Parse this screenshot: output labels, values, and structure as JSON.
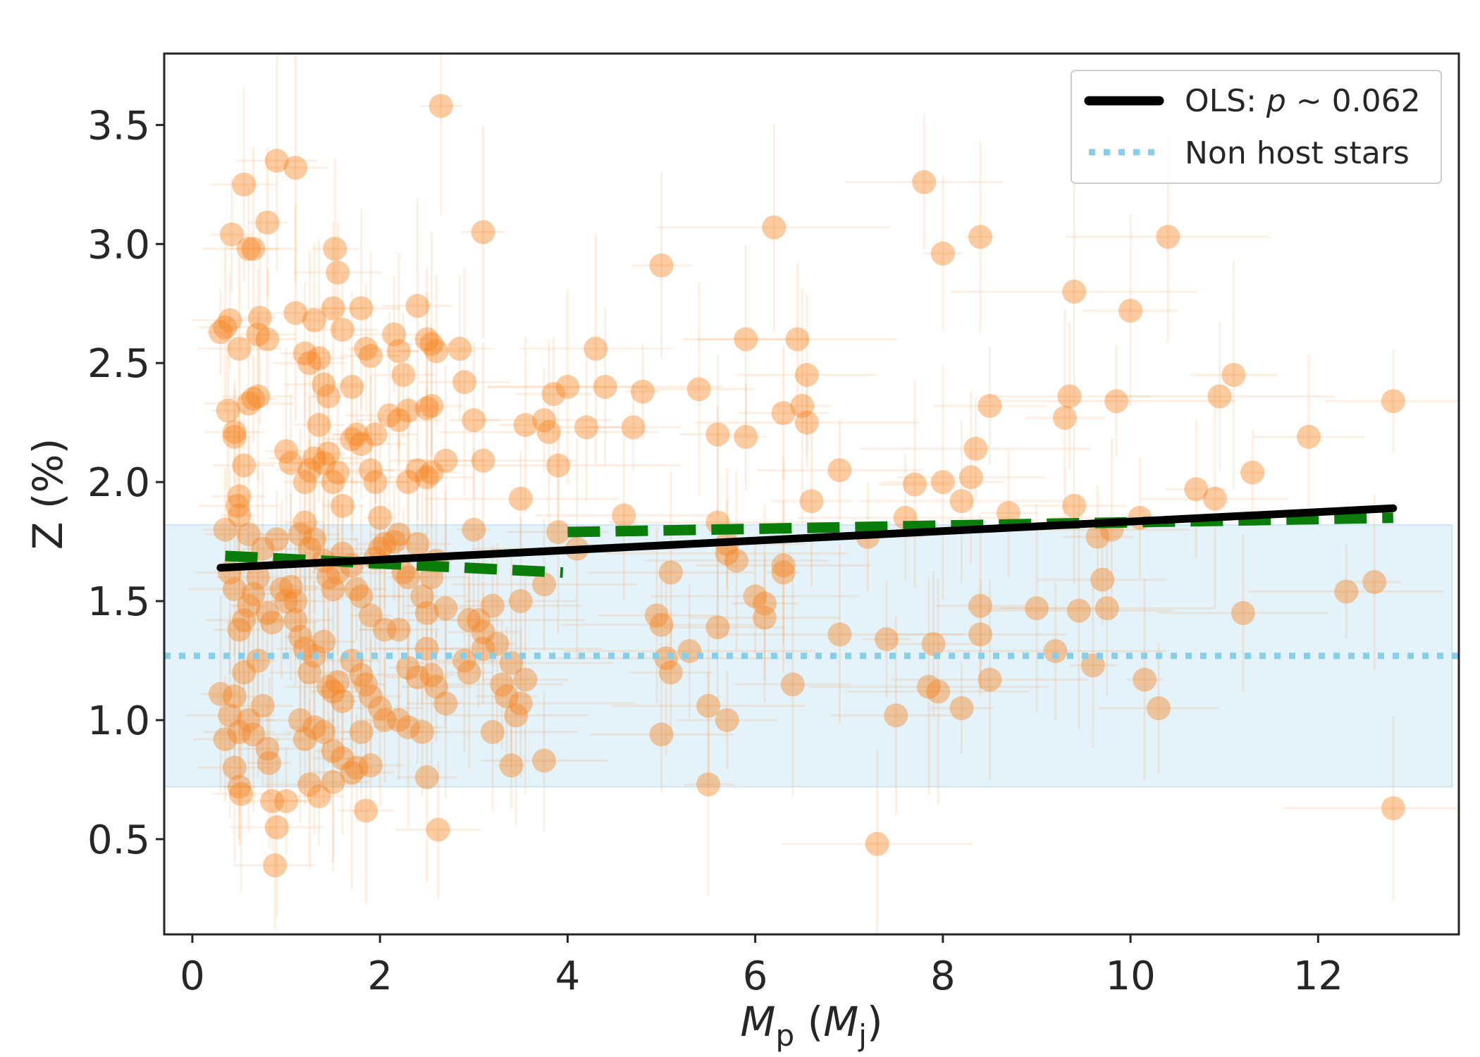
{
  "chart_data": {
    "type": "scatter",
    "xlabel_main": "M",
    "xlabel_sub": "p",
    "xlabel_open": " (",
    "xlabel_unit_main": "M",
    "xlabel_unit_sub": "j",
    "xlabel_close": ")",
    "ylabel": "Z (%)",
    "xlim": [
      -0.3,
      13.5
    ],
    "ylim": [
      0.1,
      3.8
    ],
    "x_ticks": [
      0,
      2,
      4,
      6,
      8,
      10,
      12
    ],
    "y_ticks": [
      0.5,
      1.0,
      1.5,
      2.0,
      2.5,
      3.0,
      3.5
    ],
    "x_tick_labels": [
      "0",
      "2",
      "4",
      "6",
      "8",
      "10",
      "12"
    ],
    "y_tick_labels": [
      "0.5",
      "1.0",
      "1.5",
      "2.0",
      "2.5",
      "3.0",
      "3.5"
    ],
    "grid": false,
    "legend_placement": "top-right",
    "legend": {
      "ols_prefix": "OLS: ",
      "ols_p": "p",
      "ols_suffix": " ~ 0.062",
      "non_host": "Non host stars"
    },
    "colors": {
      "points": "#f5821f",
      "ols_line": "#000000",
      "segment_line": "#0a7d0a",
      "non_host_line": "#87ceeb",
      "non_host_band": "#dbeef7"
    },
    "non_host": {
      "mean": 1.27,
      "band": [
        0.72,
        1.82
      ]
    },
    "ols_line": {
      "x": [
        0.3,
        12.8
      ],
      "y": [
        1.64,
        1.89
      ]
    },
    "segment_fits": [
      {
        "x": [
          0.35,
          3.95
        ],
        "y": [
          1.69,
          1.62
        ]
      },
      {
        "x": [
          4.0,
          12.8
        ],
        "y": [
          1.79,
          1.85
        ]
      }
    ],
    "points": [
      [
        0.3,
        2.63
      ],
      [
        0.35,
        2.65
      ],
      [
        0.4,
        2.68
      ],
      [
        0.38,
        2.3
      ],
      [
        0.45,
        2.21
      ],
      [
        0.5,
        2.56
      ],
      [
        0.42,
        3.04
      ],
      [
        0.55,
        3.25
      ],
      [
        0.6,
        2.98
      ],
      [
        0.65,
        2.98
      ],
      [
        0.7,
        2.62
      ],
      [
        0.72,
        2.69
      ],
      [
        0.8,
        2.6
      ],
      [
        0.9,
        3.35
      ],
      [
        0.8,
        3.09
      ],
      [
        1.1,
        3.32
      ],
      [
        0.6,
        2.33
      ],
      [
        0.65,
        2.35
      ],
      [
        0.7,
        2.36
      ],
      [
        0.45,
        2.19
      ],
      [
        0.5,
        1.94
      ],
      [
        0.48,
        1.9
      ],
      [
        0.5,
        1.86
      ],
      [
        0.55,
        2.07
      ],
      [
        0.6,
        1.78
      ],
      [
        0.35,
        1.8
      ],
      [
        0.4,
        1.62
      ],
      [
        0.45,
        1.55
      ],
      [
        0.5,
        1.38
      ],
      [
        0.55,
        1.42
      ],
      [
        0.6,
        1.48
      ],
      [
        0.65,
        1.53
      ],
      [
        0.7,
        1.6
      ],
      [
        0.75,
        1.72
      ],
      [
        0.8,
        1.45
      ],
      [
        0.85,
        1.41
      ],
      [
        0.9,
        1.76
      ],
      [
        0.95,
        1.55
      ],
      [
        1.0,
        1.5
      ],
      [
        1.05,
        1.56
      ],
      [
        1.1,
        1.5
      ],
      [
        0.3,
        1.11
      ],
      [
        0.35,
        0.92
      ],
      [
        0.4,
        1.02
      ],
      [
        0.45,
        1.1
      ],
      [
        0.5,
        0.95
      ],
      [
        0.55,
        1.2
      ],
      [
        0.6,
        1.0
      ],
      [
        0.65,
        0.94
      ],
      [
        0.7,
        1.25
      ],
      [
        0.75,
        1.06
      ],
      [
        0.8,
        0.88
      ],
      [
        0.82,
        0.82
      ],
      [
        0.85,
        0.66
      ],
      [
        0.9,
        0.55
      ],
      [
        1.0,
        0.66
      ],
      [
        0.45,
        0.8
      ],
      [
        0.5,
        0.72
      ],
      [
        0.52,
        0.69
      ],
      [
        0.88,
        0.39
      ],
      [
        1.0,
        2.13
      ],
      [
        1.05,
        2.08
      ],
      [
        1.1,
        2.71
      ],
      [
        1.2,
        2.54
      ],
      [
        1.25,
        2.5
      ],
      [
        1.3,
        2.68
      ],
      [
        1.35,
        2.52
      ],
      [
        1.4,
        2.41
      ],
      [
        1.45,
        2.36
      ],
      [
        1.5,
        2.73
      ],
      [
        1.55,
        2.88
      ],
      [
        1.52,
        2.98
      ],
      [
        1.6,
        2.64
      ],
      [
        1.7,
        2.4
      ],
      [
        1.75,
        2.2
      ],
      [
        1.8,
        2.73
      ],
      [
        1.85,
        2.56
      ],
      [
        1.9,
        2.53
      ],
      [
        1.95,
        2.2
      ],
      [
        1.2,
        2.0
      ],
      [
        1.25,
        2.05
      ],
      [
        1.3,
        2.1
      ],
      [
        1.35,
        2.24
      ],
      [
        1.4,
        2.08
      ],
      [
        1.45,
        2.12
      ],
      [
        1.5,
        2.0
      ],
      [
        1.55,
        2.04
      ],
      [
        1.6,
        1.9
      ],
      [
        1.7,
        2.18
      ],
      [
        1.8,
        2.16
      ],
      [
        1.9,
        2.05
      ],
      [
        1.95,
        2.0
      ],
      [
        2.0,
        1.85
      ],
      [
        2.05,
        1.74
      ],
      [
        1.15,
        1.78
      ],
      [
        1.2,
        1.83
      ],
      [
        1.25,
        1.72
      ],
      [
        1.3,
        1.76
      ],
      [
        1.4,
        1.67
      ],
      [
        1.45,
        1.6
      ],
      [
        1.5,
        1.55
      ],
      [
        1.55,
        1.62
      ],
      [
        1.6,
        1.7
      ],
      [
        1.7,
        1.65
      ],
      [
        1.75,
        1.55
      ],
      [
        1.8,
        1.52
      ],
      [
        1.9,
        1.44
      ],
      [
        1.95,
        1.68
      ],
      [
        2.0,
        1.72
      ],
      [
        2.05,
        1.38
      ],
      [
        1.1,
        1.42
      ],
      [
        1.15,
        1.35
      ],
      [
        1.2,
        1.3
      ],
      [
        1.25,
        1.2
      ],
      [
        1.3,
        1.27
      ],
      [
        1.4,
        1.33
      ],
      [
        1.45,
        1.14
      ],
      [
        1.5,
        1.12
      ],
      [
        1.55,
        1.16
      ],
      [
        1.6,
        1.08
      ],
      [
        1.7,
        1.25
      ],
      [
        1.8,
        1.19
      ],
      [
        1.85,
        1.15
      ],
      [
        1.9,
        1.1
      ],
      [
        2.0,
        1.05
      ],
      [
        2.05,
        1.0
      ],
      [
        1.15,
        1.0
      ],
      [
        1.2,
        0.92
      ],
      [
        1.3,
        0.97
      ],
      [
        1.4,
        0.95
      ],
      [
        1.5,
        0.87
      ],
      [
        1.6,
        0.84
      ],
      [
        1.7,
        0.78
      ],
      [
        1.8,
        0.95
      ],
      [
        1.9,
        0.81
      ],
      [
        1.25,
        0.73
      ],
      [
        1.35,
        0.68
      ],
      [
        1.5,
        0.74
      ],
      [
        1.75,
        0.8
      ],
      [
        1.85,
        0.62
      ],
      [
        2.15,
        2.62
      ],
      [
        2.2,
        2.55
      ],
      [
        2.25,
        2.45
      ],
      [
        2.1,
        2.28
      ],
      [
        2.3,
        2.3
      ],
      [
        2.4,
        2.74
      ],
      [
        2.5,
        2.6
      ],
      [
        2.55,
        2.58
      ],
      [
        2.6,
        2.55
      ],
      [
        2.5,
        2.31
      ],
      [
        2.55,
        2.32
      ],
      [
        2.2,
        2.26
      ],
      [
        2.3,
        2.0
      ],
      [
        2.4,
        2.05
      ],
      [
        2.5,
        2.02
      ],
      [
        2.55,
        2.04
      ],
      [
        2.7,
        2.09
      ],
      [
        2.15,
        1.75
      ],
      [
        2.2,
        1.78
      ],
      [
        2.25,
        1.62
      ],
      [
        2.3,
        1.6
      ],
      [
        2.4,
        1.74
      ],
      [
        2.45,
        1.52
      ],
      [
        2.5,
        1.45
      ],
      [
        2.55,
        1.6
      ],
      [
        2.6,
        1.67
      ],
      [
        2.7,
        1.47
      ],
      [
        2.2,
        1.38
      ],
      [
        2.3,
        1.22
      ],
      [
        2.4,
        1.18
      ],
      [
        2.5,
        1.3
      ],
      [
        2.55,
        1.19
      ],
      [
        2.6,
        1.14
      ],
      [
        2.7,
        1.07
      ],
      [
        2.2,
        1.0
      ],
      [
        2.3,
        0.97
      ],
      [
        2.45,
        0.95
      ],
      [
        2.5,
        0.76
      ],
      [
        2.62,
        0.54
      ],
      [
        2.65,
        3.58
      ],
      [
        2.85,
        2.56
      ],
      [
        2.9,
        2.42
      ],
      [
        3.0,
        2.26
      ],
      [
        3.1,
        2.09
      ],
      [
        3.0,
        1.8
      ],
      [
        2.95,
        1.42
      ],
      [
        3.05,
        1.42
      ],
      [
        3.1,
        1.37
      ],
      [
        2.9,
        1.25
      ],
      [
        3.1,
        1.3
      ],
      [
        2.95,
        1.2
      ],
      [
        3.2,
        1.48
      ],
      [
        3.25,
        1.32
      ],
      [
        3.3,
        1.15
      ],
      [
        3.4,
        1.24
      ],
      [
        3.35,
        1.1
      ],
      [
        3.45,
        1.02
      ],
      [
        3.5,
        1.07
      ],
      [
        3.55,
        1.17
      ],
      [
        3.2,
        0.95
      ],
      [
        3.4,
        0.81
      ],
      [
        3.5,
        1.5
      ],
      [
        3.5,
        1.93
      ],
      [
        3.55,
        2.24
      ],
      [
        3.75,
        2.26
      ],
      [
        3.8,
        2.21
      ],
      [
        3.85,
        2.37
      ],
      [
        4.0,
        2.4
      ],
      [
        3.9,
        2.07
      ],
      [
        3.9,
        1.79
      ],
      [
        3.75,
        1.57
      ],
      [
        3.1,
        3.05
      ],
      [
        3.75,
        0.83
      ],
      [
        4.1,
        1.72
      ],
      [
        4.2,
        2.23
      ],
      [
        4.3,
        2.56
      ],
      [
        4.4,
        2.4
      ],
      [
        4.7,
        2.23
      ],
      [
        4.6,
        1.86
      ],
      [
        4.8,
        2.38
      ],
      [
        4.95,
        1.44
      ],
      [
        5.0,
        1.4
      ],
      [
        5.0,
        2.91
      ],
      [
        5.0,
        0.94
      ],
      [
        5.05,
        1.26
      ],
      [
        5.1,
        1.2
      ],
      [
        5.1,
        1.62
      ],
      [
        5.3,
        1.29
      ],
      [
        5.4,
        2.39
      ],
      [
        5.5,
        1.06
      ],
      [
        5.5,
        0.73
      ],
      [
        5.6,
        1.39
      ],
      [
        5.6,
        1.83
      ],
      [
        5.6,
        2.2
      ],
      [
        5.7,
        1.74
      ],
      [
        5.7,
        1.7
      ],
      [
        5.7,
        1.0
      ],
      [
        5.8,
        1.67
      ],
      [
        5.9,
        2.19
      ],
      [
        5.9,
        2.6
      ],
      [
        6.0,
        1.52
      ],
      [
        6.1,
        1.49
      ],
      [
        6.1,
        1.43
      ],
      [
        6.2,
        3.07
      ],
      [
        6.3,
        2.29
      ],
      [
        6.3,
        1.65
      ],
      [
        6.3,
        1.62
      ],
      [
        6.4,
        1.15
      ],
      [
        6.45,
        2.6
      ],
      [
        6.5,
        2.32
      ],
      [
        6.55,
        2.45
      ],
      [
        6.55,
        2.25
      ],
      [
        6.6,
        1.92
      ],
      [
        6.9,
        2.05
      ],
      [
        6.9,
        1.36
      ],
      [
        7.2,
        1.77
      ],
      [
        7.3,
        0.48
      ],
      [
        7.4,
        1.34
      ],
      [
        7.5,
        1.02
      ],
      [
        7.6,
        1.85
      ],
      [
        7.7,
        1.99
      ],
      [
        7.8,
        3.26
      ],
      [
        7.85,
        1.14
      ],
      [
        7.9,
        1.32
      ],
      [
        7.95,
        1.12
      ],
      [
        8.0,
        2.96
      ],
      [
        8.0,
        2.0
      ],
      [
        8.2,
        1.92
      ],
      [
        8.2,
        1.05
      ],
      [
        8.3,
        2.02
      ],
      [
        8.35,
        2.14
      ],
      [
        8.4,
        1.48
      ],
      [
        8.4,
        1.36
      ],
      [
        8.4,
        3.03
      ],
      [
        8.5,
        2.32
      ],
      [
        8.5,
        1.17
      ],
      [
        8.7,
        1.87
      ],
      [
        9.0,
        1.47
      ],
      [
        9.2,
        1.29
      ],
      [
        9.3,
        2.27
      ],
      [
        9.35,
        2.36
      ],
      [
        9.4,
        2.8
      ],
      [
        9.4,
        1.9
      ],
      [
        9.45,
        1.46
      ],
      [
        9.6,
        1.23
      ],
      [
        9.7,
        1.59
      ],
      [
        9.75,
        1.47
      ],
      [
        9.65,
        1.77
      ],
      [
        9.8,
        1.8
      ],
      [
        9.85,
        2.34
      ],
      [
        10.0,
        2.72
      ],
      [
        10.1,
        1.85
      ],
      [
        10.15,
        1.17
      ],
      [
        10.3,
        1.05
      ],
      [
        10.4,
        3.03
      ],
      [
        10.7,
        1.97
      ],
      [
        10.9,
        1.93
      ],
      [
        10.95,
        2.36
      ],
      [
        11.1,
        2.45
      ],
      [
        11.2,
        1.45
      ],
      [
        11.3,
        2.04
      ],
      [
        11.9,
        2.19
      ],
      [
        12.3,
        1.54
      ],
      [
        12.6,
        1.58
      ],
      [
        12.8,
        2.34
      ],
      [
        12.8,
        0.63
      ]
    ]
  }
}
